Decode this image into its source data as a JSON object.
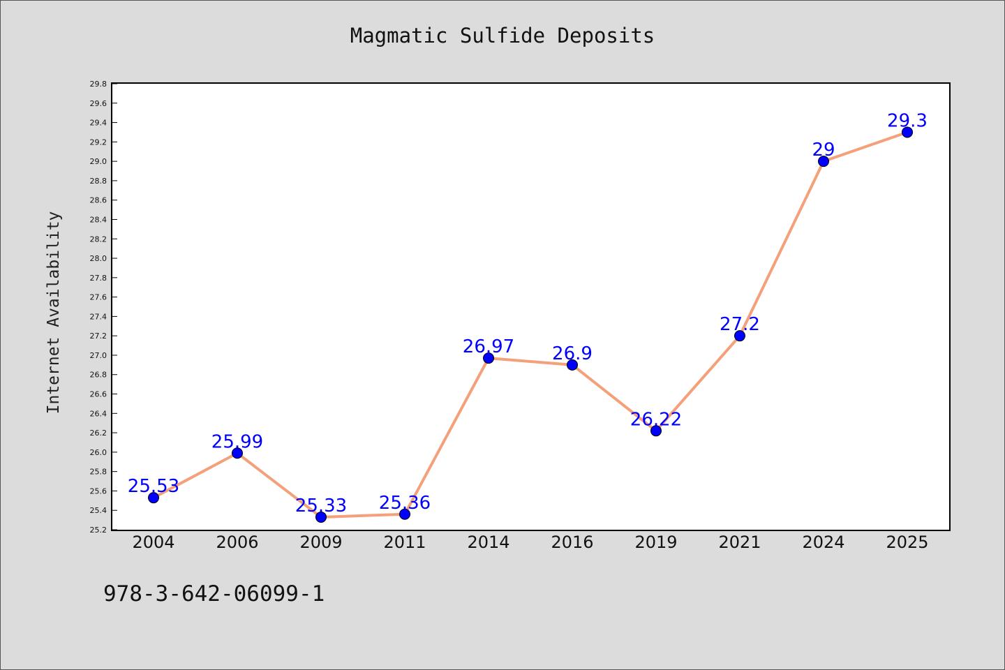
{
  "chart_data": {
    "type": "line",
    "title": "Magmatic Sulfide Deposits",
    "xlabel": "",
    "ylabel": "Internet Availability",
    "categories": [
      "2004",
      "2006",
      "2009",
      "2011",
      "2014",
      "2016",
      "2019",
      "2021",
      "2024",
      "2025"
    ],
    "series": [
      {
        "values": [
          25.53,
          25.99,
          25.33,
          25.36,
          26.97,
          26.9,
          26.22,
          27.2,
          29,
          29.3
        ],
        "labels": [
          "25.53",
          "25.99",
          "25.33",
          "25.36",
          "26.97",
          "26.9",
          "26.22",
          "27.2",
          "29",
          "29.3"
        ],
        "color": "#f4a07a",
        "marker_color": "#0000ff"
      }
    ],
    "ylim": [
      25.2,
      29.8
    ],
    "yticks": [
      "25.2",
      "25.4",
      "25.6",
      "25.8",
      "26.0",
      "26.2",
      "26.4",
      "26.6",
      "26.8",
      "27.0",
      "27.2",
      "27.4",
      "27.6",
      "27.8",
      "28.0",
      "28.2",
      "28.4",
      "28.6",
      "28.8",
      "29.0",
      "29.2",
      "29.4",
      "29.6",
      "29.8"
    ],
    "grid": false,
    "legend": "none"
  },
  "footer": {
    "code": "978-3-642-06099-1"
  }
}
